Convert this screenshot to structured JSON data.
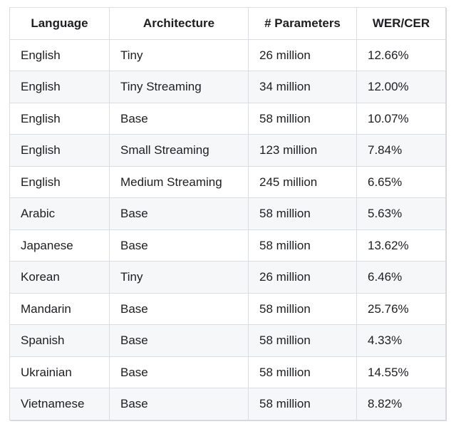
{
  "table": {
    "columns": [
      "Language",
      "Architecture",
      "# Parameters",
      "WER/CER"
    ],
    "rows": [
      [
        "English",
        "Tiny",
        "26 million",
        "12.66%"
      ],
      [
        "English",
        "Tiny Streaming",
        "34 million",
        "12.00%"
      ],
      [
        "English",
        "Base",
        "58 million",
        "10.07%"
      ],
      [
        "English",
        "Small Streaming",
        "123 million",
        "7.84%"
      ],
      [
        "English",
        "Medium Streaming",
        "245 million",
        "6.65%"
      ],
      [
        "Arabic",
        "Base",
        "58 million",
        "5.63%"
      ],
      [
        "Japanese",
        "Base",
        "58 million",
        "13.62%"
      ],
      [
        "Korean",
        "Tiny",
        "26 million",
        "6.46%"
      ],
      [
        "Mandarin",
        "Base",
        "58 million",
        "25.76%"
      ],
      [
        "Spanish",
        "Base",
        "58 million",
        "4.33%"
      ],
      [
        "Ukrainian",
        "Base",
        "58 million",
        "14.55%"
      ],
      [
        "Vietnamese",
        "Base",
        "58 million",
        "8.82%"
      ]
    ],
    "colors": {
      "text": "#1c1e21",
      "border": "#dadde1",
      "stripe": "#f6f7f8",
      "background": "#ffffff"
    }
  }
}
